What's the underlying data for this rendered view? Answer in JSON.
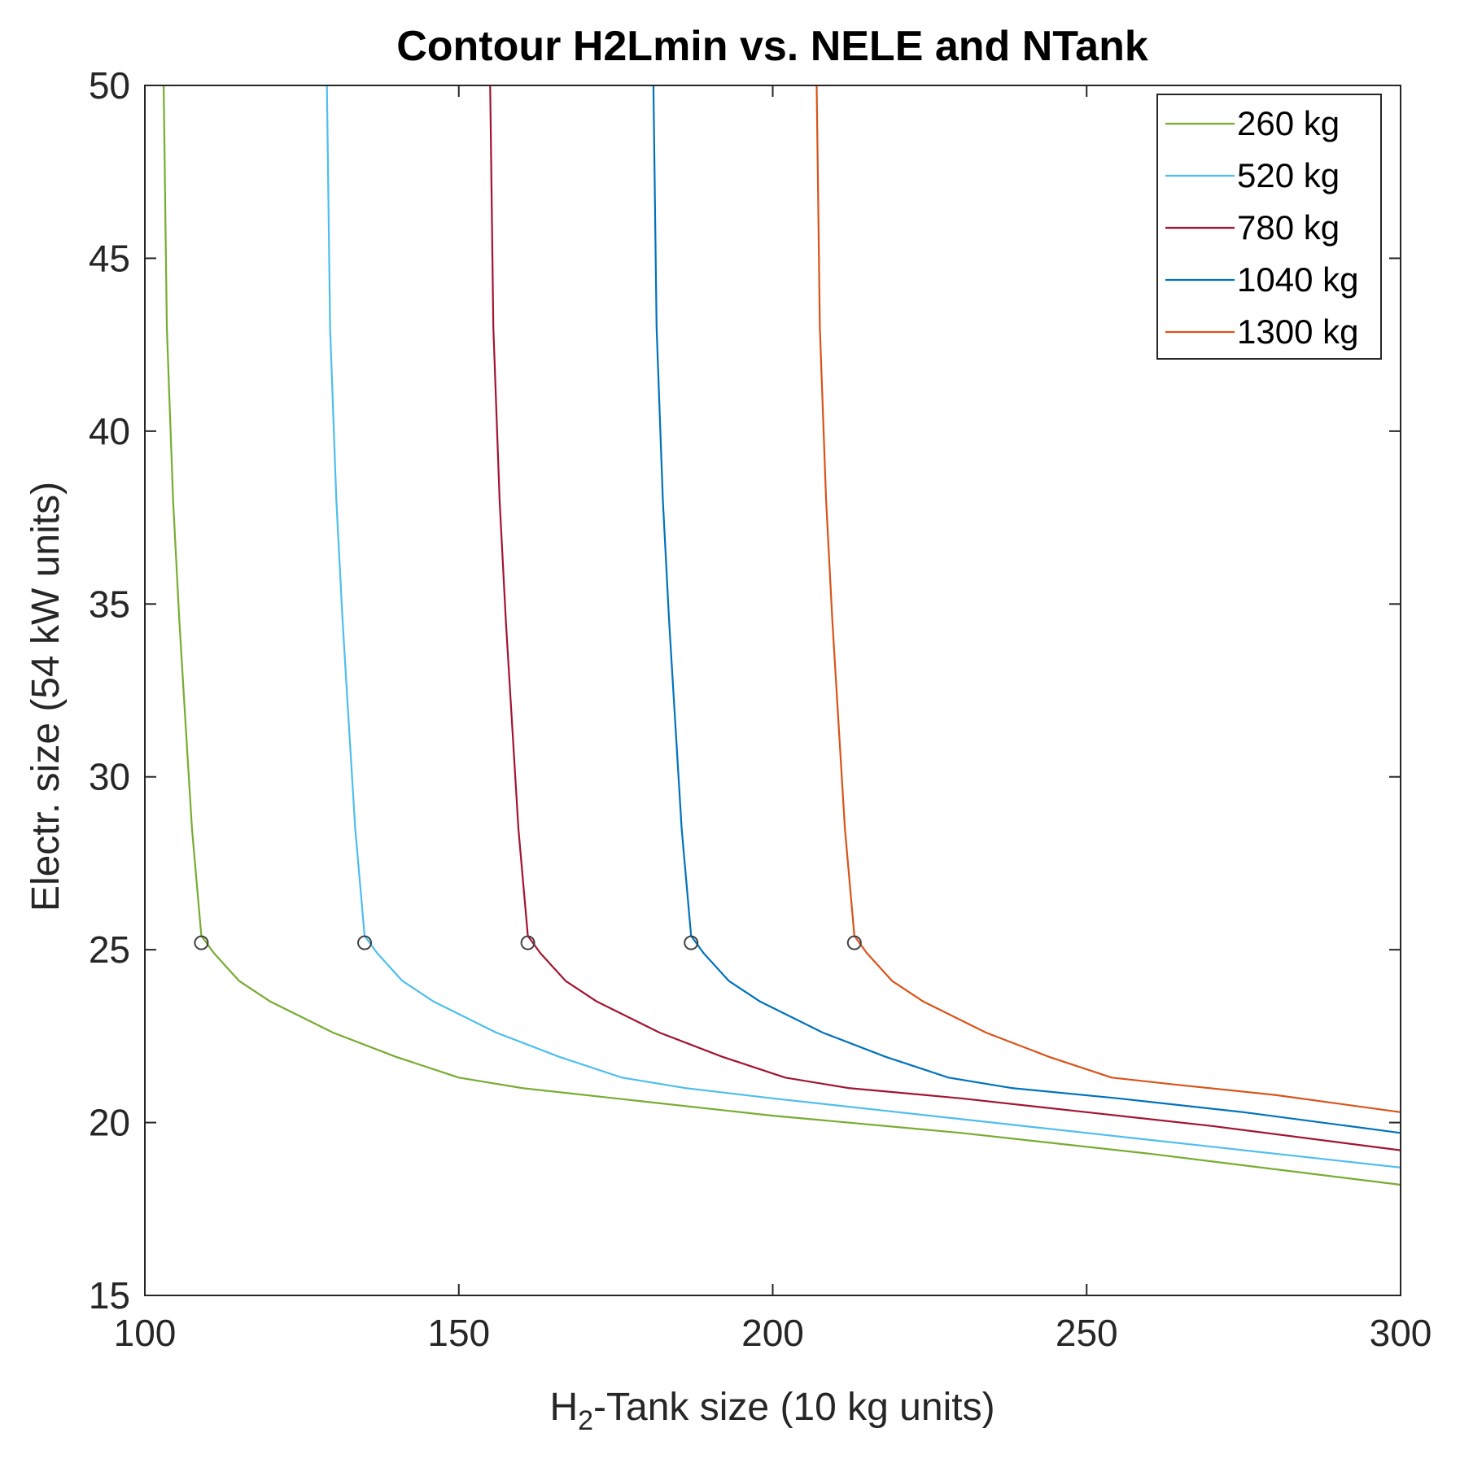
{
  "chart_data": {
    "type": "line",
    "title": "Contour H2Lmin vs. NELE and NTank",
    "xlabel": {
      "prefix": "H",
      "subscript": "2",
      "suffix": "-Tank size (10 kg units)"
    },
    "ylabel": "Electr. size (54 kW units)",
    "xlim": [
      100,
      300
    ],
    "ylim": [
      15,
      50
    ],
    "xticks": [
      100,
      150,
      200,
      250,
      300
    ],
    "yticks": [
      15,
      20,
      25,
      30,
      35,
      40,
      45,
      50
    ],
    "xtick_labels": [
      "100",
      "150",
      "200",
      "250",
      "300"
    ],
    "ytick_labels": [
      "15",
      "20",
      "25",
      "30",
      "35",
      "40",
      "45",
      "50"
    ],
    "grid": false,
    "legend_position": "top-right",
    "series": [
      {
        "name": "260 kg",
        "color": "#77ac30",
        "x": [
          103,
          103.5,
          104.5,
          105.5,
          106.5,
          107.5,
          109,
          111,
          115,
          120,
          130,
          140,
          150,
          160,
          180,
          200,
          230,
          260,
          300
        ],
        "y": [
          50,
          43,
          38,
          34.5,
          31.5,
          28.5,
          25.4,
          24.9,
          24.1,
          23.5,
          22.6,
          21.9,
          21.3,
          21.0,
          20.6,
          20.2,
          19.7,
          19.1,
          18.2
        ],
        "marker": [
          109,
          25.2
        ]
      },
      {
        "name": "520 kg",
        "color": "#4dbeee",
        "x": [
          129,
          129.5,
          130.5,
          131.5,
          132.5,
          133.5,
          135,
          137,
          141,
          146,
          156,
          166,
          176,
          186,
          200,
          220,
          250,
          280,
          300
        ],
        "y": [
          50,
          43,
          38,
          34.5,
          31.5,
          28.5,
          25.4,
          24.9,
          24.1,
          23.5,
          22.6,
          21.9,
          21.3,
          21.0,
          20.7,
          20.3,
          19.7,
          19.1,
          18.7
        ],
        "marker": [
          135,
          25.2
        ]
      },
      {
        "name": "780 kg",
        "color": "#a2142f",
        "x": [
          155,
          155.5,
          156.5,
          157.5,
          158.5,
          159.5,
          161,
          163,
          167,
          172,
          182,
          192,
          202,
          212,
          230,
          250,
          270,
          300
        ],
        "y": [
          50,
          43,
          38,
          34.5,
          31.5,
          28.5,
          25.4,
          24.9,
          24.1,
          23.5,
          22.6,
          21.9,
          21.3,
          21.0,
          20.7,
          20.3,
          19.9,
          19.2
        ],
        "marker": [
          161,
          25.2
        ]
      },
      {
        "name": "1040 kg",
        "color": "#0072bd",
        "x": [
          181,
          181.5,
          182.5,
          183.5,
          184.5,
          185.5,
          187,
          189,
          193,
          198,
          208,
          218,
          228,
          238,
          255,
          275,
          300
        ],
        "y": [
          50,
          43,
          38,
          34.5,
          31.5,
          28.5,
          25.4,
          24.9,
          24.1,
          23.5,
          22.6,
          21.9,
          21.3,
          21.0,
          20.7,
          20.3,
          19.7
        ],
        "marker": [
          187,
          25.2
        ]
      },
      {
        "name": "1300 kg",
        "color": "#d95319",
        "x": [
          207,
          207.5,
          208.5,
          209.5,
          210.5,
          211.5,
          213,
          215,
          219,
          224,
          234,
          244,
          254,
          264,
          280,
          300
        ],
        "y": [
          50,
          43,
          38,
          34.5,
          31.5,
          28.5,
          25.4,
          24.9,
          24.1,
          23.5,
          22.6,
          21.9,
          21.3,
          21.1,
          20.8,
          20.3
        ],
        "marker": [
          213,
          25.2
        ]
      }
    ]
  }
}
